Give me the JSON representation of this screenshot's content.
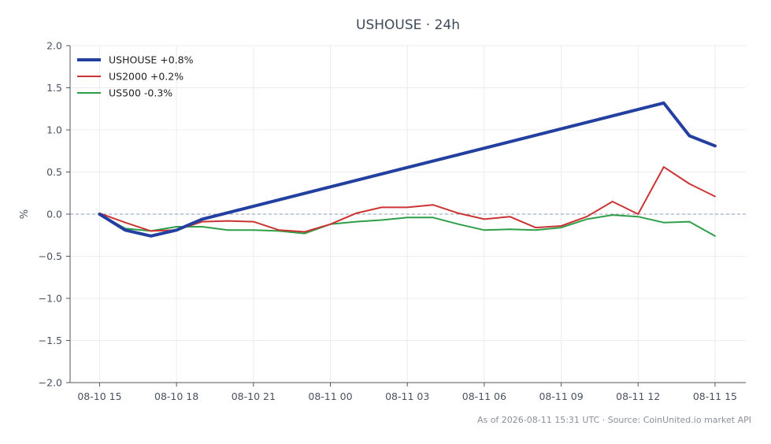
{
  "chart_data": {
    "type": "line",
    "title": "USHOUSE · 24h",
    "ylabel": "%",
    "xlabel": "",
    "ylim": [
      -2.0,
      2.0
    ],
    "yticks": [
      "2.0",
      "1.5",
      "1.0",
      "0.5",
      "0.0",
      "−0.5",
      "−1.0",
      "−1.5",
      "−2.0"
    ],
    "ytick_values": [
      2.0,
      1.5,
      1.0,
      0.5,
      0.0,
      -0.5,
      -1.0,
      -1.5,
      -2.0
    ],
    "xticks": [
      "08-10 15",
      "08-10 18",
      "08-10 21",
      "08-11 00",
      "08-11 03",
      "08-11 06",
      "08-11 09",
      "08-11 12",
      "08-11 15"
    ],
    "xtick_positions": [
      0,
      3,
      6,
      9,
      12,
      15,
      18,
      21,
      24
    ],
    "xlim": [
      -1.15,
      25.2
    ],
    "x": [
      0,
      1,
      2,
      3,
      4,
      5,
      6,
      7,
      8,
      9,
      10,
      11,
      12,
      13,
      14,
      15,
      16,
      17,
      18,
      19,
      20,
      21,
      22,
      23,
      24
    ],
    "grid": true,
    "legend_position": "top-left",
    "zero_line": true,
    "series": [
      {
        "name": "USHOUSE +0.8%",
        "color": "#2340a0",
        "x": [
          0,
          1,
          2,
          3,
          4,
          22,
          23,
          24
        ],
        "values": [
          0.0,
          -0.19,
          -0.26,
          -0.19,
          -0.06,
          1.32,
          0.93,
          0.81
        ]
      },
      {
        "name": "US2000 +0.2%",
        "color": "#cc3333",
        "x": [
          0,
          1,
          2,
          3,
          4,
          5,
          6,
          7,
          8,
          9,
          10,
          11,
          12,
          13,
          14,
          15,
          16,
          17,
          18,
          19,
          20,
          21,
          22,
          23,
          24
        ],
        "values": [
          0.01,
          -0.1,
          -0.2,
          -0.19,
          -0.09,
          -0.08,
          -0.09,
          -0.19,
          -0.21,
          -0.12,
          0.01,
          0.08,
          0.08,
          0.11,
          0.01,
          -0.06,
          -0.03,
          -0.16,
          -0.14,
          -0.03,
          0.15,
          0.0,
          0.56,
          0.36,
          0.21
        ]
      },
      {
        "name": "US500 -0.3%",
        "color": "#2e9e48",
        "x": [
          0,
          1,
          2,
          3,
          4,
          5,
          6,
          7,
          8,
          9,
          10,
          11,
          12,
          13,
          14,
          15,
          16,
          17,
          18,
          19,
          20,
          21,
          22,
          23,
          24
        ],
        "values": [
          0.0,
          -0.17,
          -0.2,
          -0.15,
          -0.15,
          -0.19,
          -0.19,
          -0.2,
          -0.23,
          -0.12,
          -0.09,
          -0.07,
          -0.04,
          -0.04,
          -0.12,
          -0.19,
          -0.18,
          -0.19,
          -0.16,
          -0.06,
          -0.01,
          -0.03,
          -0.1,
          -0.09,
          -0.26
        ]
      }
    ]
  },
  "footer": "As of 2026-08-11 15:31 UTC · Source: CoinUnited.io market API"
}
